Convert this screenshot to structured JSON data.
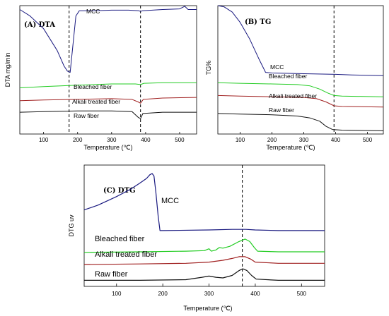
{
  "chart_data": [
    {
      "type": "line",
      "panel_label": "(A) DTA",
      "xlabel": "Temperature (℃)",
      "ylabel": "DTA mg/min",
      "xlim": [
        30,
        550
      ],
      "xticks": [
        100,
        200,
        300,
        400,
        500
      ],
      "y_tick_labels": "none",
      "grid": false,
      "reference_lines": [
        175,
        385
      ],
      "series": [
        {
          "name": "MCC",
          "color": "#1a1a80",
          "points": [
            [
              30,
              0.97
            ],
            [
              60,
              0.92
            ],
            [
              100,
              0.82
            ],
            [
              140,
              0.65
            ],
            [
              160,
              0.53
            ],
            [
              170,
              0.49
            ],
            [
              178,
              0.48
            ],
            [
              185,
              0.66
            ],
            [
              195,
              0.92
            ],
            [
              205,
              0.96
            ],
            [
              250,
              0.96
            ],
            [
              300,
              0.965
            ],
            [
              350,
              0.965
            ],
            [
              380,
              0.96
            ],
            [
              385,
              0.955
            ],
            [
              390,
              0.96
            ],
            [
              450,
              0.97
            ],
            [
              500,
              0.975
            ],
            [
              515,
              0.995
            ],
            [
              525,
              0.97
            ],
            [
              550,
              0.97
            ]
          ]
        },
        {
          "name": "Bleached fiber",
          "color": "#22cc22",
          "points": [
            [
              30,
              0.36
            ],
            [
              100,
              0.37
            ],
            [
              200,
              0.38
            ],
            [
              300,
              0.39
            ],
            [
              370,
              0.39
            ],
            [
              385,
              0.385
            ],
            [
              395,
              0.395
            ],
            [
              450,
              0.4
            ],
            [
              550,
              0.4
            ]
          ]
        },
        {
          "name": "Alkali treated fiber",
          "color": "#a02020",
          "points": [
            [
              30,
              0.26
            ],
            [
              100,
              0.265
            ],
            [
              200,
              0.27
            ],
            [
              300,
              0.275
            ],
            [
              360,
              0.27
            ],
            [
              378,
              0.25
            ],
            [
              385,
              0.24
            ],
            [
              393,
              0.27
            ],
            [
              450,
              0.28
            ],
            [
              550,
              0.285
            ]
          ]
        },
        {
          "name": "Raw fiber",
          "color": "#111111",
          "points": [
            [
              30,
              0.17
            ],
            [
              100,
              0.175
            ],
            [
              200,
              0.18
            ],
            [
              300,
              0.18
            ],
            [
              360,
              0.175
            ],
            [
              378,
              0.13
            ],
            [
              385,
              0.12
            ],
            [
              392,
              0.16
            ],
            [
              450,
              0.17
            ],
            [
              550,
              0.17
            ]
          ]
        }
      ]
    },
    {
      "type": "line",
      "panel_label": "(B) TG",
      "xlabel": "Temperature (℃)",
      "ylabel": "TG%",
      "xlim": [
        30,
        550
      ],
      "xticks": [
        100,
        200,
        300,
        400,
        500
      ],
      "y_tick_labels": "none",
      "grid": false,
      "reference_lines": [
        395
      ],
      "series": [
        {
          "name": "MCC",
          "color": "#1a1a80",
          "points": [
            [
              30,
              1.0
            ],
            [
              50,
              0.99
            ],
            [
              75,
              0.95
            ],
            [
              100,
              0.87
            ],
            [
              130,
              0.74
            ],
            [
              160,
              0.58
            ],
            [
              180,
              0.48
            ],
            [
              200,
              0.475
            ],
            [
              300,
              0.47
            ],
            [
              400,
              0.465
            ],
            [
              450,
              0.46
            ],
            [
              550,
              0.455
            ]
          ]
        },
        {
          "name": "Bleached fiber",
          "color": "#22cc22",
          "points": [
            [
              30,
              0.4
            ],
            [
              100,
              0.395
            ],
            [
              200,
              0.39
            ],
            [
              280,
              0.385
            ],
            [
              320,
              0.375
            ],
            [
              350,
              0.35
            ],
            [
              375,
              0.32
            ],
            [
              395,
              0.3
            ],
            [
              420,
              0.295
            ],
            [
              550,
              0.29
            ]
          ]
        },
        {
          "name": "Alkali treated fiber",
          "color": "#a02020",
          "points": [
            [
              30,
              0.3
            ],
            [
              100,
              0.295
            ],
            [
              200,
              0.29
            ],
            [
              300,
              0.285
            ],
            [
              340,
              0.275
            ],
            [
              370,
              0.25
            ],
            [
              395,
              0.22
            ],
            [
              420,
              0.215
            ],
            [
              550,
              0.21
            ]
          ]
        },
        {
          "name": "Raw fiber",
          "color": "#111111",
          "points": [
            [
              30,
              0.16
            ],
            [
              100,
              0.155
            ],
            [
              200,
              0.15
            ],
            [
              280,
              0.14
            ],
            [
              320,
              0.125
            ],
            [
              350,
              0.1
            ],
            [
              370,
              0.06
            ],
            [
              390,
              0.035
            ],
            [
              420,
              0.03
            ],
            [
              550,
              0.025
            ]
          ]
        }
      ]
    },
    {
      "type": "line",
      "panel_label": "(C) DTG",
      "xlabel": "Temperature (℃)",
      "ylabel": "DTG uv",
      "xlim": [
        30,
        550
      ],
      "xticks": [
        100,
        200,
        300,
        400,
        500
      ],
      "y_tick_labels": "none",
      "grid": false,
      "reference_lines": [
        372
      ],
      "series": [
        {
          "name": "MCC",
          "color": "#1a1a80",
          "points": [
            [
              30,
              0.63
            ],
            [
              60,
              0.67
            ],
            [
              100,
              0.74
            ],
            [
              130,
              0.8
            ],
            [
              150,
              0.85
            ],
            [
              165,
              0.89
            ],
            [
              172,
              0.92
            ],
            [
              177,
              0.93
            ],
            [
              181,
              0.91
            ],
            [
              185,
              0.78
            ],
            [
              190,
              0.58
            ],
            [
              194,
              0.46
            ],
            [
              200,
              0.46
            ],
            [
              300,
              0.465
            ],
            [
              350,
              0.47
            ],
            [
              380,
              0.47
            ],
            [
              400,
              0.465
            ],
            [
              450,
              0.46
            ],
            [
              550,
              0.46
            ]
          ]
        },
        {
          "name": "Bleached fiber",
          "color": "#22cc22",
          "points": [
            [
              30,
              0.28
            ],
            [
              150,
              0.285
            ],
            [
              250,
              0.29
            ],
            [
              290,
              0.295
            ],
            [
              300,
              0.31
            ],
            [
              305,
              0.29
            ],
            [
              315,
              0.3
            ],
            [
              322,
              0.32
            ],
            [
              330,
              0.315
            ],
            [
              345,
              0.33
            ],
            [
              365,
              0.37
            ],
            [
              378,
              0.39
            ],
            [
              388,
              0.37
            ],
            [
              398,
              0.32
            ],
            [
              405,
              0.29
            ],
            [
              450,
              0.285
            ],
            [
              550,
              0.285
            ]
          ]
        },
        {
          "name": "Alkali treated fiber",
          "color": "#a02020",
          "points": [
            [
              30,
              0.18
            ],
            [
              150,
              0.185
            ],
            [
              250,
              0.19
            ],
            [
              300,
              0.2
            ],
            [
              330,
              0.215
            ],
            [
              350,
              0.23
            ],
            [
              365,
              0.245
            ],
            [
              378,
              0.245
            ],
            [
              390,
              0.225
            ],
            [
              400,
              0.2
            ],
            [
              450,
              0.19
            ],
            [
              550,
              0.19
            ]
          ]
        },
        {
          "name": "Raw fiber",
          "color": "#111111",
          "points": [
            [
              30,
              0.05
            ],
            [
              150,
              0.05
            ],
            [
              250,
              0.055
            ],
            [
              285,
              0.075
            ],
            [
              300,
              0.085
            ],
            [
              315,
              0.075
            ],
            [
              330,
              0.07
            ],
            [
              350,
              0.09
            ],
            [
              365,
              0.13
            ],
            [
              373,
              0.145
            ],
            [
              382,
              0.13
            ],
            [
              392,
              0.09
            ],
            [
              402,
              0.06
            ],
            [
              450,
              0.05
            ],
            [
              550,
              0.05
            ]
          ]
        }
      ]
    }
  ]
}
